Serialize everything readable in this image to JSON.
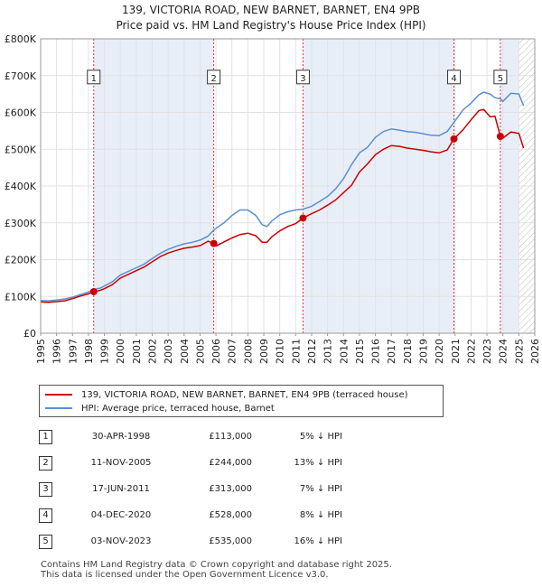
{
  "header": {
    "title": "139, VICTORIA ROAD, NEW BARNET, BARNET, EN4 9PB",
    "subtitle": "Price paid vs. HM Land Registry's House Price Index (HPI)"
  },
  "colors": {
    "price_paid": "#cc0000",
    "hpi": "#5b8fd0",
    "band": "#e8eef8",
    "vline": "#dd3333"
  },
  "legend": {
    "price_paid_label": "139, VICTORIA ROAD, NEW BARNET, BARNET, EN4 9PB (terraced house)",
    "hpi_label": "HPI: Average price, terraced house, Barnet"
  },
  "sales": [
    {
      "num": "1",
      "date": "30-APR-1998",
      "price": "£113,000",
      "hpi_diff": "5% ↓ HPI"
    },
    {
      "num": "2",
      "date": "11-NOV-2005",
      "price": "£244,000",
      "hpi_diff": "13% ↓ HPI"
    },
    {
      "num": "3",
      "date": "17-JUN-2011",
      "price": "£313,000",
      "hpi_diff": "7% ↓ HPI"
    },
    {
      "num": "4",
      "date": "04-DEC-2020",
      "price": "£528,000",
      "hpi_diff": "8% ↓ HPI"
    },
    {
      "num": "5",
      "date": "03-NOV-2023",
      "price": "£535,000",
      "hpi_diff": "16% ↓ HPI"
    }
  ],
  "footer": {
    "line1": "Contains HM Land Registry data © Crown copyright and database right 2025.",
    "line2": "This data is licensed under the Open Government Licence v3.0."
  },
  "chart_data": {
    "type": "line",
    "title": "139, VICTORIA ROAD, NEW BARNET, BARNET, EN4 9PB",
    "subtitle": "Price paid vs. HM Land Registry's House Price Index (HPI)",
    "xlabel": "",
    "ylabel": "",
    "xlim": [
      1995,
      2026
    ],
    "ylim": [
      0,
      800000
    ],
    "grid": true,
    "x_ticks": [
      "1995",
      "1996",
      "1997",
      "1998",
      "1999",
      "2000",
      "2001",
      "2002",
      "2003",
      "2004",
      "2005",
      "2006",
      "2007",
      "2008",
      "2009",
      "2010",
      "2011",
      "2012",
      "2013",
      "2014",
      "2015",
      "2016",
      "2017",
      "2018",
      "2019",
      "2020",
      "2021",
      "2022",
      "2023",
      "2024",
      "2025",
      "2026"
    ],
    "y_ticks": [
      {
        "value": 0,
        "label": "£0"
      },
      {
        "value": 100000,
        "label": "£100K"
      },
      {
        "value": 200000,
        "label": "£200K"
      },
      {
        "value": 300000,
        "label": "£300K"
      },
      {
        "value": 400000,
        "label": "£400K"
      },
      {
        "value": 500000,
        "label": "£500K"
      },
      {
        "value": 600000,
        "label": "£600K"
      },
      {
        "value": 700000,
        "label": "£700K"
      },
      {
        "value": 800000,
        "label": "£800K"
      }
    ],
    "shaded_bands": [
      [
        1998.33,
        2005.86
      ],
      [
        2011.46,
        2020.93
      ],
      [
        2023.84,
        2025.0
      ]
    ],
    "hatch_from": 2025.0,
    "sale_markers": [
      {
        "label": "1",
        "x": 1998.33,
        "y": 113000
      },
      {
        "label": "2",
        "x": 2005.86,
        "y": 244000
      },
      {
        "label": "3",
        "x": 2011.46,
        "y": 313000
      },
      {
        "label": "4",
        "x": 2020.93,
        "y": 528000
      },
      {
        "label": "5",
        "x": 2023.84,
        "y": 535000
      }
    ],
    "marker_label_y": 695000,
    "series": [
      {
        "name": "139, VICTORIA ROAD, NEW BARNET, BARNET, EN4 9PB (terraced house)",
        "x": [
          1995.0,
          1995.5,
          1996.0,
          1996.5,
          1997.0,
          1997.5,
          1998.0,
          1998.33,
          1998.7,
          1999.0,
          1999.5,
          2000.0,
          2000.5,
          2001.0,
          2001.5,
          2002.0,
          2002.5,
          2003.0,
          2003.5,
          2004.0,
          2004.5,
          2005.0,
          2005.5,
          2005.86,
          2006.0,
          2006.5,
          2007.0,
          2007.5,
          2008.0,
          2008.5,
          2008.9,
          2009.2,
          2009.5,
          2010.0,
          2010.5,
          2011.0,
          2011.46,
          2012.0,
          2012.5,
          2013.0,
          2013.5,
          2014.0,
          2014.5,
          2015.0,
          2015.5,
          2016.0,
          2016.5,
          2017.0,
          2017.5,
          2018.0,
          2018.5,
          2019.0,
          2019.5,
          2020.0,
          2020.5,
          2020.93,
          2021.5,
          2022.0,
          2022.5,
          2022.8,
          2023.2,
          2023.5,
          2023.84,
          2024.0,
          2024.5,
          2025.0,
          2025.3
        ],
        "y": [
          85000,
          84000,
          86000,
          88000,
          94000,
          101000,
          107000,
          113000,
          116000,
          121000,
          132000,
          150000,
          160000,
          170000,
          180000,
          194000,
          208000,
          218000,
          225000,
          231000,
          234000,
          238000,
          250000,
          244000,
          237000,
          248000,
          259000,
          268000,
          272000,
          265000,
          247000,
          247000,
          262000,
          278000,
          290000,
          298000,
          313000,
          325000,
          335000,
          348000,
          362000,
          382000,
          402000,
          438000,
          460000,
          485000,
          500000,
          510000,
          508000,
          503000,
          500000,
          497000,
          493000,
          490000,
          498000,
          528000,
          553000,
          580000,
          605000,
          608000,
          588000,
          590000,
          535000,
          530000,
          547000,
          543000,
          503000
        ]
      },
      {
        "name": "HPI: Average price, terraced house, Barnet",
        "x": [
          1995.0,
          1995.5,
          1996.0,
          1996.5,
          1997.0,
          1997.5,
          1998.0,
          1998.33,
          1998.7,
          1999.0,
          1999.5,
          2000.0,
          2000.5,
          2001.0,
          2001.5,
          2002.0,
          2002.5,
          2003.0,
          2003.5,
          2004.0,
          2004.5,
          2005.0,
          2005.5,
          2005.86,
          2006.0,
          2006.5,
          2007.0,
          2007.5,
          2008.0,
          2008.5,
          2008.9,
          2009.2,
          2009.5,
          2010.0,
          2010.5,
          2011.0,
          2011.46,
          2012.0,
          2012.5,
          2013.0,
          2013.5,
          2014.0,
          2014.5,
          2015.0,
          2015.5,
          2016.0,
          2016.5,
          2017.0,
          2017.5,
          2018.0,
          2018.5,
          2019.0,
          2019.5,
          2020.0,
          2020.5,
          2020.93,
          2021.5,
          2022.0,
          2022.5,
          2022.8,
          2023.2,
          2023.5,
          2023.84,
          2024.0,
          2024.5,
          2025.0,
          2025.3
        ],
        "y": [
          89000,
          88000,
          90000,
          93000,
          98000,
          105000,
          112000,
          119000,
          122000,
          128000,
          140000,
          158000,
          168000,
          178000,
          188000,
          203000,
          217000,
          228000,
          236000,
          243000,
          247000,
          253000,
          264000,
          280000,
          285000,
          300000,
          320000,
          335000,
          335000,
          320000,
          295000,
          290000,
          305000,
          322000,
          330000,
          335000,
          337000,
          345000,
          358000,
          372000,
          392000,
          420000,
          458000,
          490000,
          505000,
          532000,
          548000,
          555000,
          552000,
          548000,
          546000,
          542000,
          538000,
          537000,
          548000,
          573000,
          607000,
          625000,
          648000,
          655000,
          650000,
          640000,
          637000,
          630000,
          652000,
          650000,
          618000
        ]
      }
    ]
  }
}
